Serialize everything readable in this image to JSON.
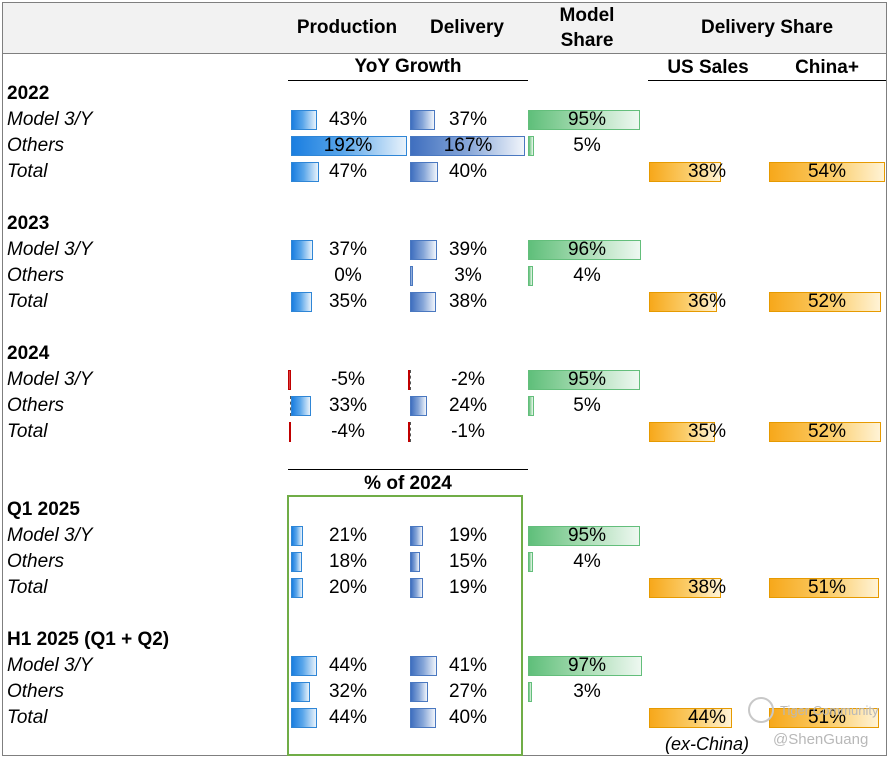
{
  "headers": {
    "production": "Production",
    "delivery": "Delivery",
    "model_share_l1": "Model",
    "model_share_l2": "Share",
    "delivery_share": "Delivery Share",
    "yoy_growth": "YoY Growth",
    "us_sales": "US Sales",
    "china_plus": "China+",
    "pct_of_2024": "% of 2024"
  },
  "chart_data": {
    "type": "table",
    "title": "",
    "columns": [
      "Production",
      "Delivery",
      "Model Share",
      "US Sales",
      "China+"
    ],
    "sections": [
      {
        "label": "2022",
        "metric": "YoY Growth",
        "rows": [
          {
            "name": "Model 3/Y",
            "production": 43,
            "delivery": 37,
            "model_share": 95,
            "production_label": "43%",
            "delivery_label": "37%",
            "share_label": "95%"
          },
          {
            "name": "Others",
            "production": 192,
            "delivery": 167,
            "model_share": 5,
            "production_label": "192%",
            "delivery_label": "167%",
            "share_label": "5%"
          },
          {
            "name": "Total",
            "production": 47,
            "delivery": 40,
            "us_sales": 38,
            "china_plus": 54,
            "production_label": "47%",
            "delivery_label": "40%",
            "us_label": "38%",
            "china_label": "54%"
          }
        ]
      },
      {
        "label": "2023",
        "metric": "YoY Growth",
        "rows": [
          {
            "name": "Model 3/Y",
            "production": 37,
            "delivery": 39,
            "model_share": 96,
            "production_label": "37%",
            "delivery_label": "39%",
            "share_label": "96%"
          },
          {
            "name": "Others",
            "production": 0,
            "delivery": 3,
            "model_share": 4,
            "production_label": "0%",
            "delivery_label": "3%",
            "share_label": "4%"
          },
          {
            "name": "Total",
            "production": 35,
            "delivery": 38,
            "us_sales": 36,
            "china_plus": 52,
            "production_label": "35%",
            "delivery_label": "38%",
            "us_label": "36%",
            "china_label": "52%"
          }
        ]
      },
      {
        "label": "2024",
        "metric": "YoY Growth",
        "rows": [
          {
            "name": "Model 3/Y",
            "production": -5,
            "delivery": -2,
            "model_share": 95,
            "production_label": "-5%",
            "delivery_label": "-2%",
            "share_label": "95%"
          },
          {
            "name": "Others",
            "production": 33,
            "delivery": 24,
            "model_share": 5,
            "production_label": "33%",
            "delivery_label": "24%",
            "share_label": "5%"
          },
          {
            "name": "Total",
            "production": -4,
            "delivery": -1,
            "us_sales": 35,
            "china_plus": 52,
            "production_label": "-4%",
            "delivery_label": "-1%",
            "us_label": "35%",
            "china_label": "52%"
          }
        ]
      },
      {
        "label": "Q1 2025",
        "metric": "% of 2024",
        "rows": [
          {
            "name": "Model 3/Y",
            "production": 21,
            "delivery": 19,
            "model_share": 95,
            "production_label": "21%",
            "delivery_label": "19%",
            "share_label": "95%"
          },
          {
            "name": "Others",
            "production": 18,
            "delivery": 15,
            "model_share": 4,
            "production_label": "18%",
            "delivery_label": "15%",
            "share_label": "4%"
          },
          {
            "name": "Total",
            "production": 20,
            "delivery": 19,
            "us_sales": 38,
            "china_plus": 51,
            "production_label": "20%",
            "delivery_label": "19%",
            "us_label": "38%",
            "china_label": "51%"
          }
        ]
      },
      {
        "label": "H1 2025 (Q1 + Q2)",
        "metric": "% of 2024",
        "rows": [
          {
            "name": "Model 3/Y",
            "production": 44,
            "delivery": 41,
            "model_share": 97,
            "production_label": "44%",
            "delivery_label": "41%",
            "share_label": "97%"
          },
          {
            "name": "Others",
            "production": 32,
            "delivery": 27,
            "model_share": 3,
            "production_label": "32%",
            "delivery_label": "27%",
            "share_label": "3%"
          },
          {
            "name": "Total",
            "production": 44,
            "delivery": 40,
            "us_sales": 44,
            "china_plus": 51,
            "production_label": "44%",
            "delivery_label": "40%",
            "us_label": "44%",
            "china_label": "51%"
          }
        ]
      }
    ]
  },
  "footnote": "(ex-China)",
  "watermark": {
    "community": "Tiger Community",
    "handle": "@ShenGuang"
  },
  "colors": {
    "production_bar": "#1a7ee0",
    "delivery_bar": "#3f6fbf",
    "negative_bar": "#d94040",
    "model_share_bar": "#5fbf7a",
    "delivery_share_bar": "#f7a81b",
    "highlight_box": "#70ad47"
  }
}
